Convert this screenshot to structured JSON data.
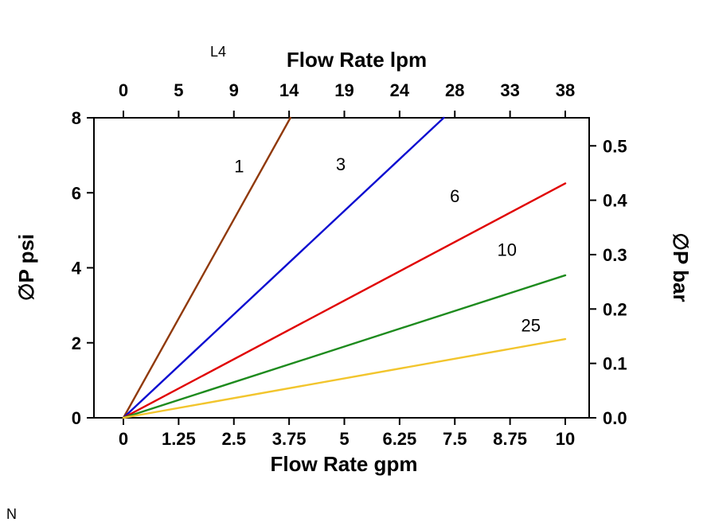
{
  "figure": {
    "background": "#ffffff",
    "code_top": "L4",
    "code_bottom": "N"
  },
  "chart_data": {
    "type": "line",
    "title": "",
    "grid": false,
    "legend": "inline-labels",
    "x_axis_bottom": {
      "label": "Flow Rate gpm",
      "range": [
        0,
        10
      ],
      "ticks": [
        0,
        1.25,
        2.5,
        3.75,
        5,
        6.25,
        7.5,
        8.75,
        10
      ],
      "tick_labels": [
        "0",
        "1.25",
        "2.5",
        "3.75",
        "5",
        "6.25",
        "7.5",
        "8.75",
        "10"
      ]
    },
    "x_axis_top": {
      "label": "Flow Rate lpm",
      "tick_labels": [
        "0",
        "5",
        "9",
        "14",
        "19",
        "24",
        "28",
        "33",
        "38"
      ]
    },
    "y_axis_left": {
      "label": "∅P psi",
      "range": [
        0,
        8
      ],
      "ticks": [
        0,
        2,
        4,
        6,
        8
      ],
      "tick_labels": [
        "0",
        "2",
        "4",
        "6",
        "8"
      ]
    },
    "y_axis_right": {
      "label": "∅P bar",
      "ticks": [
        0.0,
        0.1,
        0.2,
        0.3,
        0.4,
        0.5
      ],
      "tick_labels": [
        "0.0",
        "0.1",
        "0.2",
        "0.3",
        "0.4",
        "0.5"
      ],
      "psi_per_bar": 14.5038
    },
    "series": [
      {
        "name": "1",
        "color": "#90390A",
        "points": [
          [
            0,
            0
          ],
          [
            3.78,
            8
          ]
        ],
        "label_at": [
          2.62,
          6.55
        ]
      },
      {
        "name": "3",
        "color": "#0B0BD0",
        "points": [
          [
            0,
            0
          ],
          [
            7.25,
            8
          ]
        ],
        "label_at": [
          4.92,
          6.6
        ]
      },
      {
        "name": "6",
        "color": "#E00000",
        "points": [
          [
            0,
            0
          ],
          [
            10,
            6.25
          ]
        ],
        "label_at": [
          7.5,
          5.75
        ]
      },
      {
        "name": "10",
        "color": "#1E8B1E",
        "points": [
          [
            0,
            0
          ],
          [
            10,
            3.8
          ]
        ],
        "label_at": [
          8.68,
          4.32
        ]
      },
      {
        "name": "25",
        "color": "#F2C52D",
        "points": [
          [
            0,
            0
          ],
          [
            10,
            2.1
          ]
        ],
        "label_at": [
          9.22,
          2.3
        ]
      }
    ]
  }
}
